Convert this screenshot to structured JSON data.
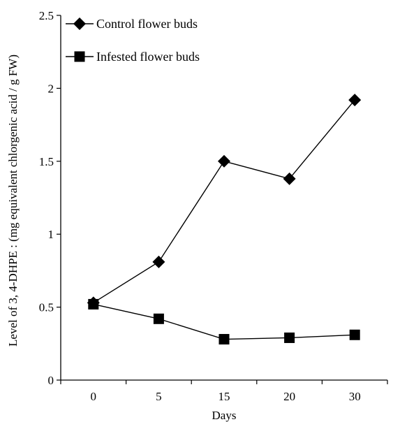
{
  "chart_data": {
    "type": "line",
    "categories": [
      "0",
      "5",
      "15",
      "20",
      "30"
    ],
    "series": [
      {
        "name": "Control flower buds",
        "marker": "diamond",
        "values": [
          0.53,
          0.81,
          1.5,
          1.38,
          1.92
        ]
      },
      {
        "name": "Infested flower buds",
        "marker": "square",
        "values": [
          0.52,
          0.42,
          0.28,
          0.29,
          0.31
        ]
      }
    ],
    "xlabel": "Days",
    "ylabel": "Level of 3, 4-DHPE : (mg equivalent chlorgenic acid / g FW)",
    "ylim": [
      0,
      2.5
    ],
    "yticks": [
      "0",
      "0.5",
      "1",
      "1.5",
      "2",
      "2.5"
    ],
    "grid": false,
    "legend_position": "top-left",
    "colors": {
      "line": "#000000",
      "marker": "#000000"
    }
  }
}
